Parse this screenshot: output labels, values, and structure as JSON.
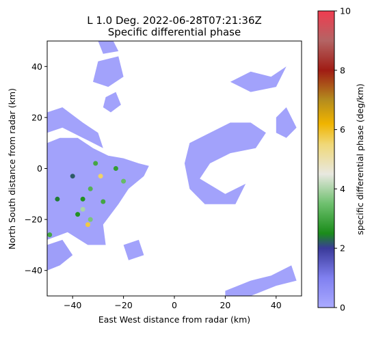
{
  "chart_data": {
    "type": "heatmap",
    "title_line1": "L 1.0 Deg. 2022-06-28T07:21:36Z",
    "title_line2": "Specific differential phase",
    "xlabel": "East West distance from radar (km)",
    "ylabel": "North South distance from radar (km)",
    "xlim": [
      -50,
      50
    ],
    "ylim": [
      -50,
      50
    ],
    "xticks": [
      -40,
      -20,
      0,
      20,
      40
    ],
    "yticks": [
      -40,
      -20,
      0,
      20,
      40
    ],
    "colorbar": {
      "label": "specific differential phase (deg/km)",
      "range": [
        0,
        10
      ],
      "ticks": [
        0,
        2,
        4,
        6,
        8,
        10
      ],
      "stops": [
        {
          "v": 0,
          "color": "#aaaaff"
        },
        {
          "v": 1,
          "color": "#8080f0"
        },
        {
          "v": 2,
          "color": "#3a3a9a"
        },
        {
          "v": 2.5,
          "color": "#1a8c1a"
        },
        {
          "v": 3.5,
          "color": "#6ec06e"
        },
        {
          "v": 4.5,
          "color": "#e8e8e0"
        },
        {
          "v": 5.5,
          "color": "#f0d878"
        },
        {
          "v": 6.2,
          "color": "#f0b400"
        },
        {
          "v": 7,
          "color": "#b48c1e"
        },
        {
          "v": 8,
          "color": "#a01c14"
        },
        {
          "v": 9,
          "color": "#b46464"
        },
        {
          "v": 10,
          "color": "#f03c50"
        }
      ]
    },
    "regions": [
      {
        "name": "western-stratiform",
        "value": 0.3,
        "pts": [
          [
            -50,
            10
          ],
          [
            -45,
            12
          ],
          [
            -38,
            12
          ],
          [
            -32,
            8
          ],
          [
            -26,
            5
          ],
          [
            -20,
            4
          ],
          [
            -14,
            2
          ],
          [
            -10,
            1
          ],
          [
            -12,
            -3
          ],
          [
            -18,
            -8
          ],
          [
            -22,
            -14
          ],
          [
            -28,
            -22
          ],
          [
            -27,
            -30
          ],
          [
            -34,
            -30
          ],
          [
            -42,
            -25
          ],
          [
            -50,
            -28
          ]
        ]
      },
      {
        "name": "west-sector-blob",
        "value": 0.4,
        "pts": [
          [
            -50,
            -30
          ],
          [
            -44,
            -28
          ],
          [
            -40,
            -34
          ],
          [
            -45,
            -38
          ],
          [
            -50,
            -40
          ]
        ]
      },
      {
        "name": "northwest-cells",
        "value": 0.3,
        "pts": [
          [
            -50,
            22
          ],
          [
            -44,
            24
          ],
          [
            -36,
            18
          ],
          [
            -30,
            14
          ],
          [
            -28,
            8
          ],
          [
            -36,
            12
          ],
          [
            -44,
            16
          ],
          [
            -50,
            14
          ]
        ]
      },
      {
        "name": "north-cluster",
        "value": 0.3,
        "pts": [
          [
            -30,
            42
          ],
          [
            -22,
            44
          ],
          [
            -20,
            36
          ],
          [
            -26,
            32
          ],
          [
            -32,
            34
          ]
        ]
      },
      {
        "name": "north-cluster-2",
        "value": 0.3,
        "pts": [
          [
            -27,
            28
          ],
          [
            -23,
            30
          ],
          [
            -21,
            25
          ],
          [
            -25,
            22
          ],
          [
            -28,
            24
          ]
        ]
      },
      {
        "name": "north-top-blob",
        "value": 0.3,
        "pts": [
          [
            -30,
            50
          ],
          [
            -24,
            50
          ],
          [
            -22,
            46
          ],
          [
            -28,
            45
          ]
        ]
      },
      {
        "name": "center-ring",
        "value": 0.3,
        "pts": [
          [
            6,
            10
          ],
          [
            14,
            14
          ],
          [
            22,
            18
          ],
          [
            30,
            18
          ],
          [
            36,
            14
          ],
          [
            32,
            8
          ],
          [
            22,
            6
          ],
          [
            14,
            2
          ],
          [
            10,
            -4
          ],
          [
            20,
            -10
          ],
          [
            28,
            -6
          ],
          [
            24,
            -14
          ],
          [
            12,
            -14
          ],
          [
            6,
            -8
          ],
          [
            4,
            2
          ]
        ]
      },
      {
        "name": "northeast-band",
        "value": 0.3,
        "pts": [
          [
            22,
            34
          ],
          [
            30,
            38
          ],
          [
            38,
            36
          ],
          [
            44,
            40
          ],
          [
            40,
            32
          ],
          [
            30,
            30
          ]
        ]
      },
      {
        "name": "east-north-patch",
        "value": 0.3,
        "pts": [
          [
            40,
            20
          ],
          [
            44,
            24
          ],
          [
            48,
            16
          ],
          [
            44,
            12
          ],
          [
            40,
            14
          ]
        ]
      },
      {
        "name": "southeast-strip",
        "value": 0.3,
        "pts": [
          [
            20,
            -48
          ],
          [
            30,
            -44
          ],
          [
            38,
            -42
          ],
          [
            46,
            -38
          ],
          [
            48,
            -44
          ],
          [
            40,
            -46
          ],
          [
            30,
            -50
          ],
          [
            20,
            -50
          ]
        ]
      },
      {
        "name": "south-mid-patch",
        "value": 0.3,
        "pts": [
          [
            -20,
            -30
          ],
          [
            -14,
            -28
          ],
          [
            -12,
            -34
          ],
          [
            -18,
            -36
          ]
        ]
      }
    ],
    "cells": [
      {
        "x": -31,
        "y": 2,
        "value": 3
      },
      {
        "x": -29,
        "y": -3,
        "value": 5.6
      },
      {
        "x": -33,
        "y": -8,
        "value": 3.2
      },
      {
        "x": -23,
        "y": 0,
        "value": 2.8
      },
      {
        "x": -20,
        "y": -5,
        "value": 3.4
      },
      {
        "x": -28,
        "y": -13,
        "value": 3
      },
      {
        "x": -36,
        "y": -12,
        "value": 2.6
      },
      {
        "x": -33,
        "y": -20,
        "value": 3.6
      },
      {
        "x": -34,
        "y": -22,
        "value": 5.8
      },
      {
        "x": -38,
        "y": -18,
        "value": 2.6
      },
      {
        "x": -46,
        "y": -12,
        "value": 2.4
      },
      {
        "x": -40,
        "y": -3,
        "value": 2.2
      },
      {
        "x": -49,
        "y": -26,
        "value": 3
      },
      {
        "x": -36,
        "y": -16,
        "value": 4
      }
    ]
  }
}
